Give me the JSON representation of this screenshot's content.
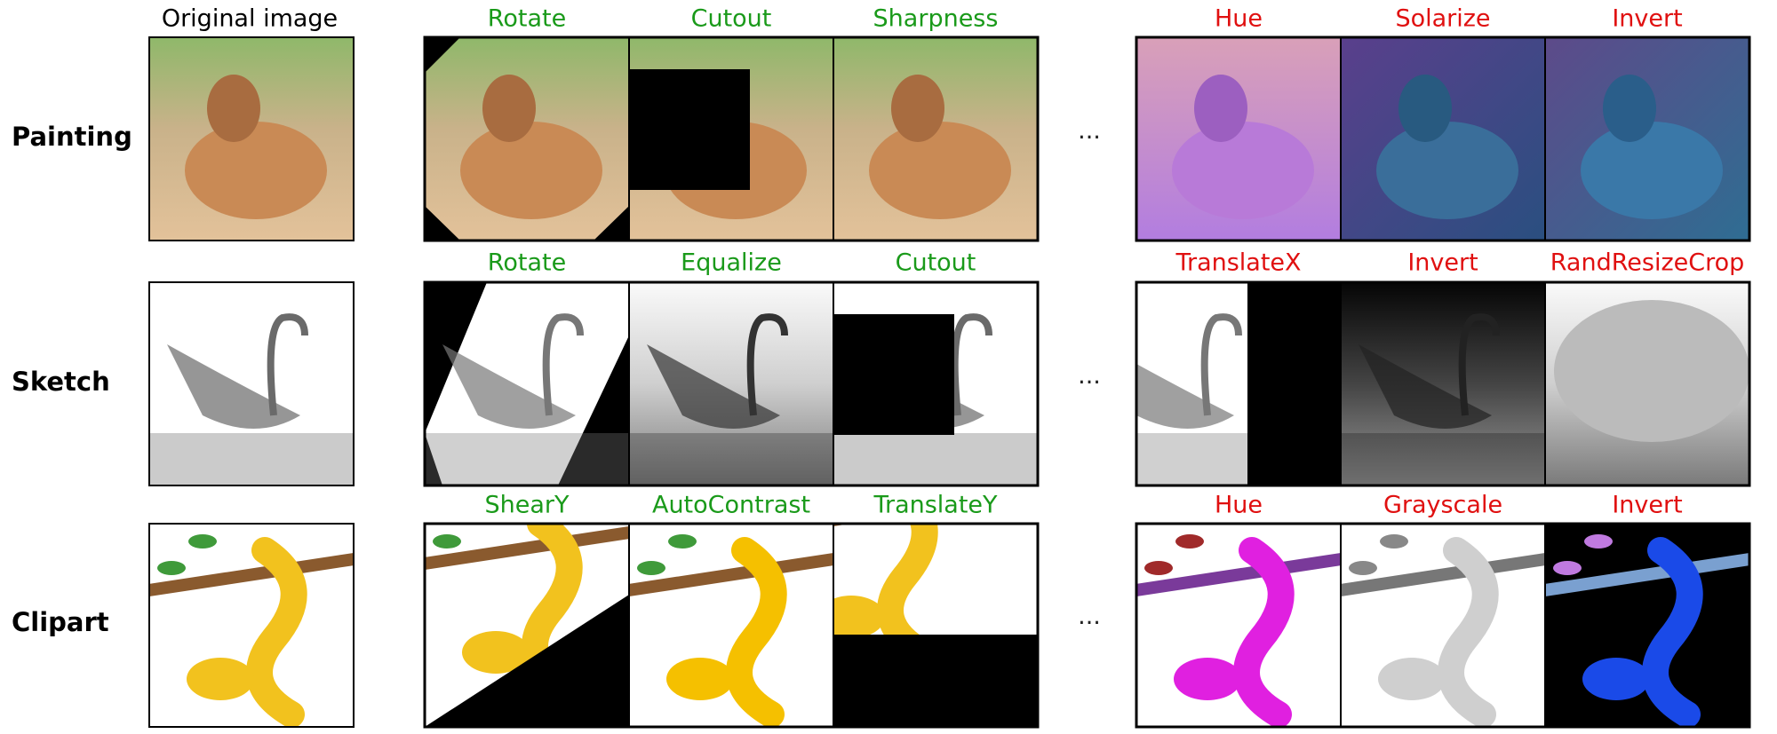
{
  "header": {
    "original": "Original image"
  },
  "ellipsis": "···",
  "rows": [
    {
      "label": "Painting",
      "weak": [
        "Rotate",
        "Cutout",
        "Sharpness"
      ],
      "strong": [
        "Hue",
        "Solarize",
        "Invert"
      ]
    },
    {
      "label": "Sketch",
      "weak": [
        "Rotate",
        "Equalize",
        "Cutout"
      ],
      "strong": [
        "TranslateX",
        "Invert",
        "RandResizeCrop"
      ]
    },
    {
      "label": "Clipart",
      "weak": [
        "ShearY",
        "AutoContrast",
        "TranslateY"
      ],
      "strong": [
        "Hue",
        "Grayscale",
        "Invert"
      ]
    }
  ]
}
